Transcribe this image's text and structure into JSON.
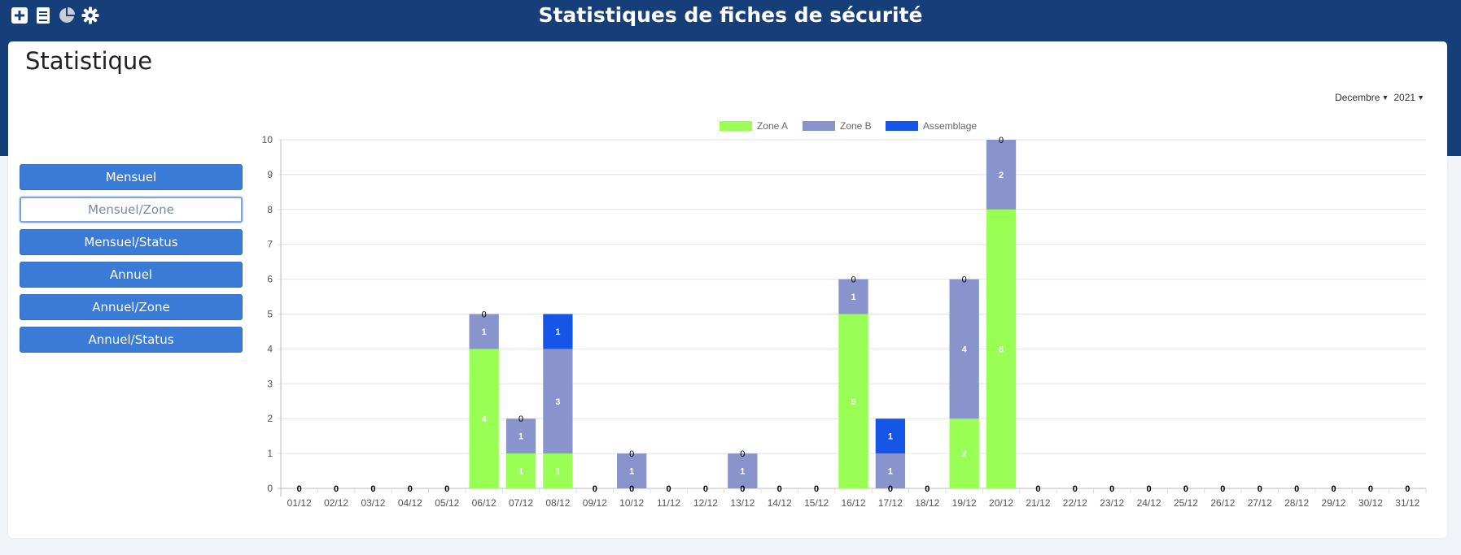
{
  "header": {
    "title": "Statistiques de fiches de sécurité",
    "icons": [
      "plus-square-icon",
      "notebook-icon",
      "pie-chart-icon",
      "gear-icon"
    ]
  },
  "page": {
    "title": "Statistique"
  },
  "filters": {
    "month": "Decembre",
    "year": "2021"
  },
  "sidebar": {
    "buttons": [
      "Mensuel",
      "Mensuel/Zone",
      "Mensuel/Status",
      "Annuel",
      "Annuel/Zone",
      "Annuel/Status"
    ],
    "active": "Mensuel/Zone"
  },
  "colors": {
    "header": "#163e78",
    "zoneA": "#99ff55",
    "zoneB": "#8a94cc",
    "assemblage": "#1555e8",
    "button": "#3b7bd8"
  },
  "chart_data": {
    "type": "bar",
    "stacked": true,
    "categories": [
      "01/12",
      "02/12",
      "03/12",
      "04/12",
      "05/12",
      "06/12",
      "07/12",
      "08/12",
      "09/12",
      "10/12",
      "11/12",
      "12/12",
      "13/12",
      "14/12",
      "15/12",
      "16/12",
      "17/12",
      "18/12",
      "19/12",
      "20/12",
      "21/12",
      "22/12",
      "23/12",
      "24/12",
      "25/12",
      "26/12",
      "27/12",
      "28/12",
      "29/12",
      "30/12",
      "31/12"
    ],
    "series": [
      {
        "name": "Zone A",
        "values": [
          0,
          0,
          0,
          0,
          0,
          4,
          1,
          1,
          0,
          0,
          0,
          0,
          0,
          0,
          0,
          5,
          0,
          0,
          2,
          8,
          0,
          0,
          0,
          0,
          0,
          0,
          0,
          0,
          0,
          0,
          0
        ]
      },
      {
        "name": "Zone B",
        "values": [
          0,
          0,
          0,
          0,
          0,
          1,
          1,
          3,
          0,
          1,
          0,
          0,
          1,
          0,
          0,
          1,
          1,
          0,
          4,
          2,
          0,
          0,
          0,
          0,
          0,
          0,
          0,
          0,
          0,
          0,
          0
        ]
      },
      {
        "name": "Assemblage",
        "values": [
          0,
          0,
          0,
          0,
          0,
          0,
          0,
          1,
          0,
          0,
          0,
          0,
          0,
          0,
          0,
          0,
          1,
          0,
          0,
          0,
          0,
          0,
          0,
          0,
          0,
          0,
          0,
          0,
          0,
          0,
          0
        ]
      }
    ],
    "ylim": [
      0,
      10
    ],
    "yticks": [
      0,
      1,
      2,
      3,
      4,
      5,
      6,
      7,
      8,
      9,
      10
    ],
    "grid": true,
    "legend": "top-center"
  }
}
